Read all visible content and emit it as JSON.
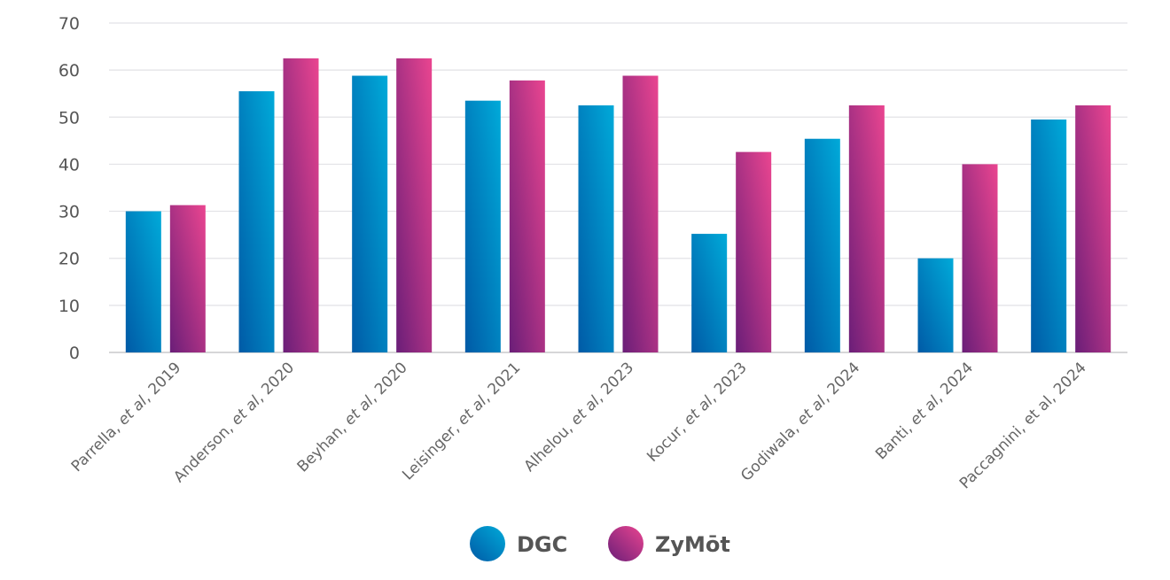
{
  "chart_data": {
    "type": "bar",
    "title": "",
    "xlabel": "",
    "ylabel": "",
    "ylim": [
      0,
      70
    ],
    "yticks": [
      0,
      10,
      20,
      30,
      40,
      50,
      60,
      70
    ],
    "grid": true,
    "legend_position": "bottom-center",
    "categories": [
      {
        "name": "Parrella, ",
        "italic": "et al",
        "year": ", 2019"
      },
      {
        "name": "Anderson, ",
        "italic": "et al",
        "year": ", 2020"
      },
      {
        "name": "Beyhan, ",
        "italic": "et al",
        "year": ", 2020"
      },
      {
        "name": "Leisinger, ",
        "italic": "et al",
        "year": ", 2021"
      },
      {
        "name": "Alhelou, ",
        "italic": "et al",
        "year": ", 2023"
      },
      {
        "name": "Kocur, ",
        "italic": "et al",
        "year": ", 2023"
      },
      {
        "name": "Godiwala, ",
        "italic": "et al",
        "year": ", 2024"
      },
      {
        "name": "Banti, ",
        "italic": "et al",
        "year": ", 2024"
      },
      {
        "name": "Paccagnini, et al, 2024",
        "italic": "",
        "year": ""
      }
    ],
    "series": [
      {
        "name": "DGC",
        "color_light": "#00aad9",
        "color_dark": "#005aa6",
        "values": [
          30,
          55.5,
          58.8,
          53.5,
          52.5,
          25.2,
          45.4,
          20,
          49.5
        ]
      },
      {
        "name": "ZyMōt",
        "color_light": "#ea4590",
        "color_dark": "#6a1e78",
        "values": [
          31.3,
          62.5,
          62.5,
          57.8,
          58.8,
          42.6,
          52.5,
          40,
          52.5
        ]
      }
    ]
  }
}
